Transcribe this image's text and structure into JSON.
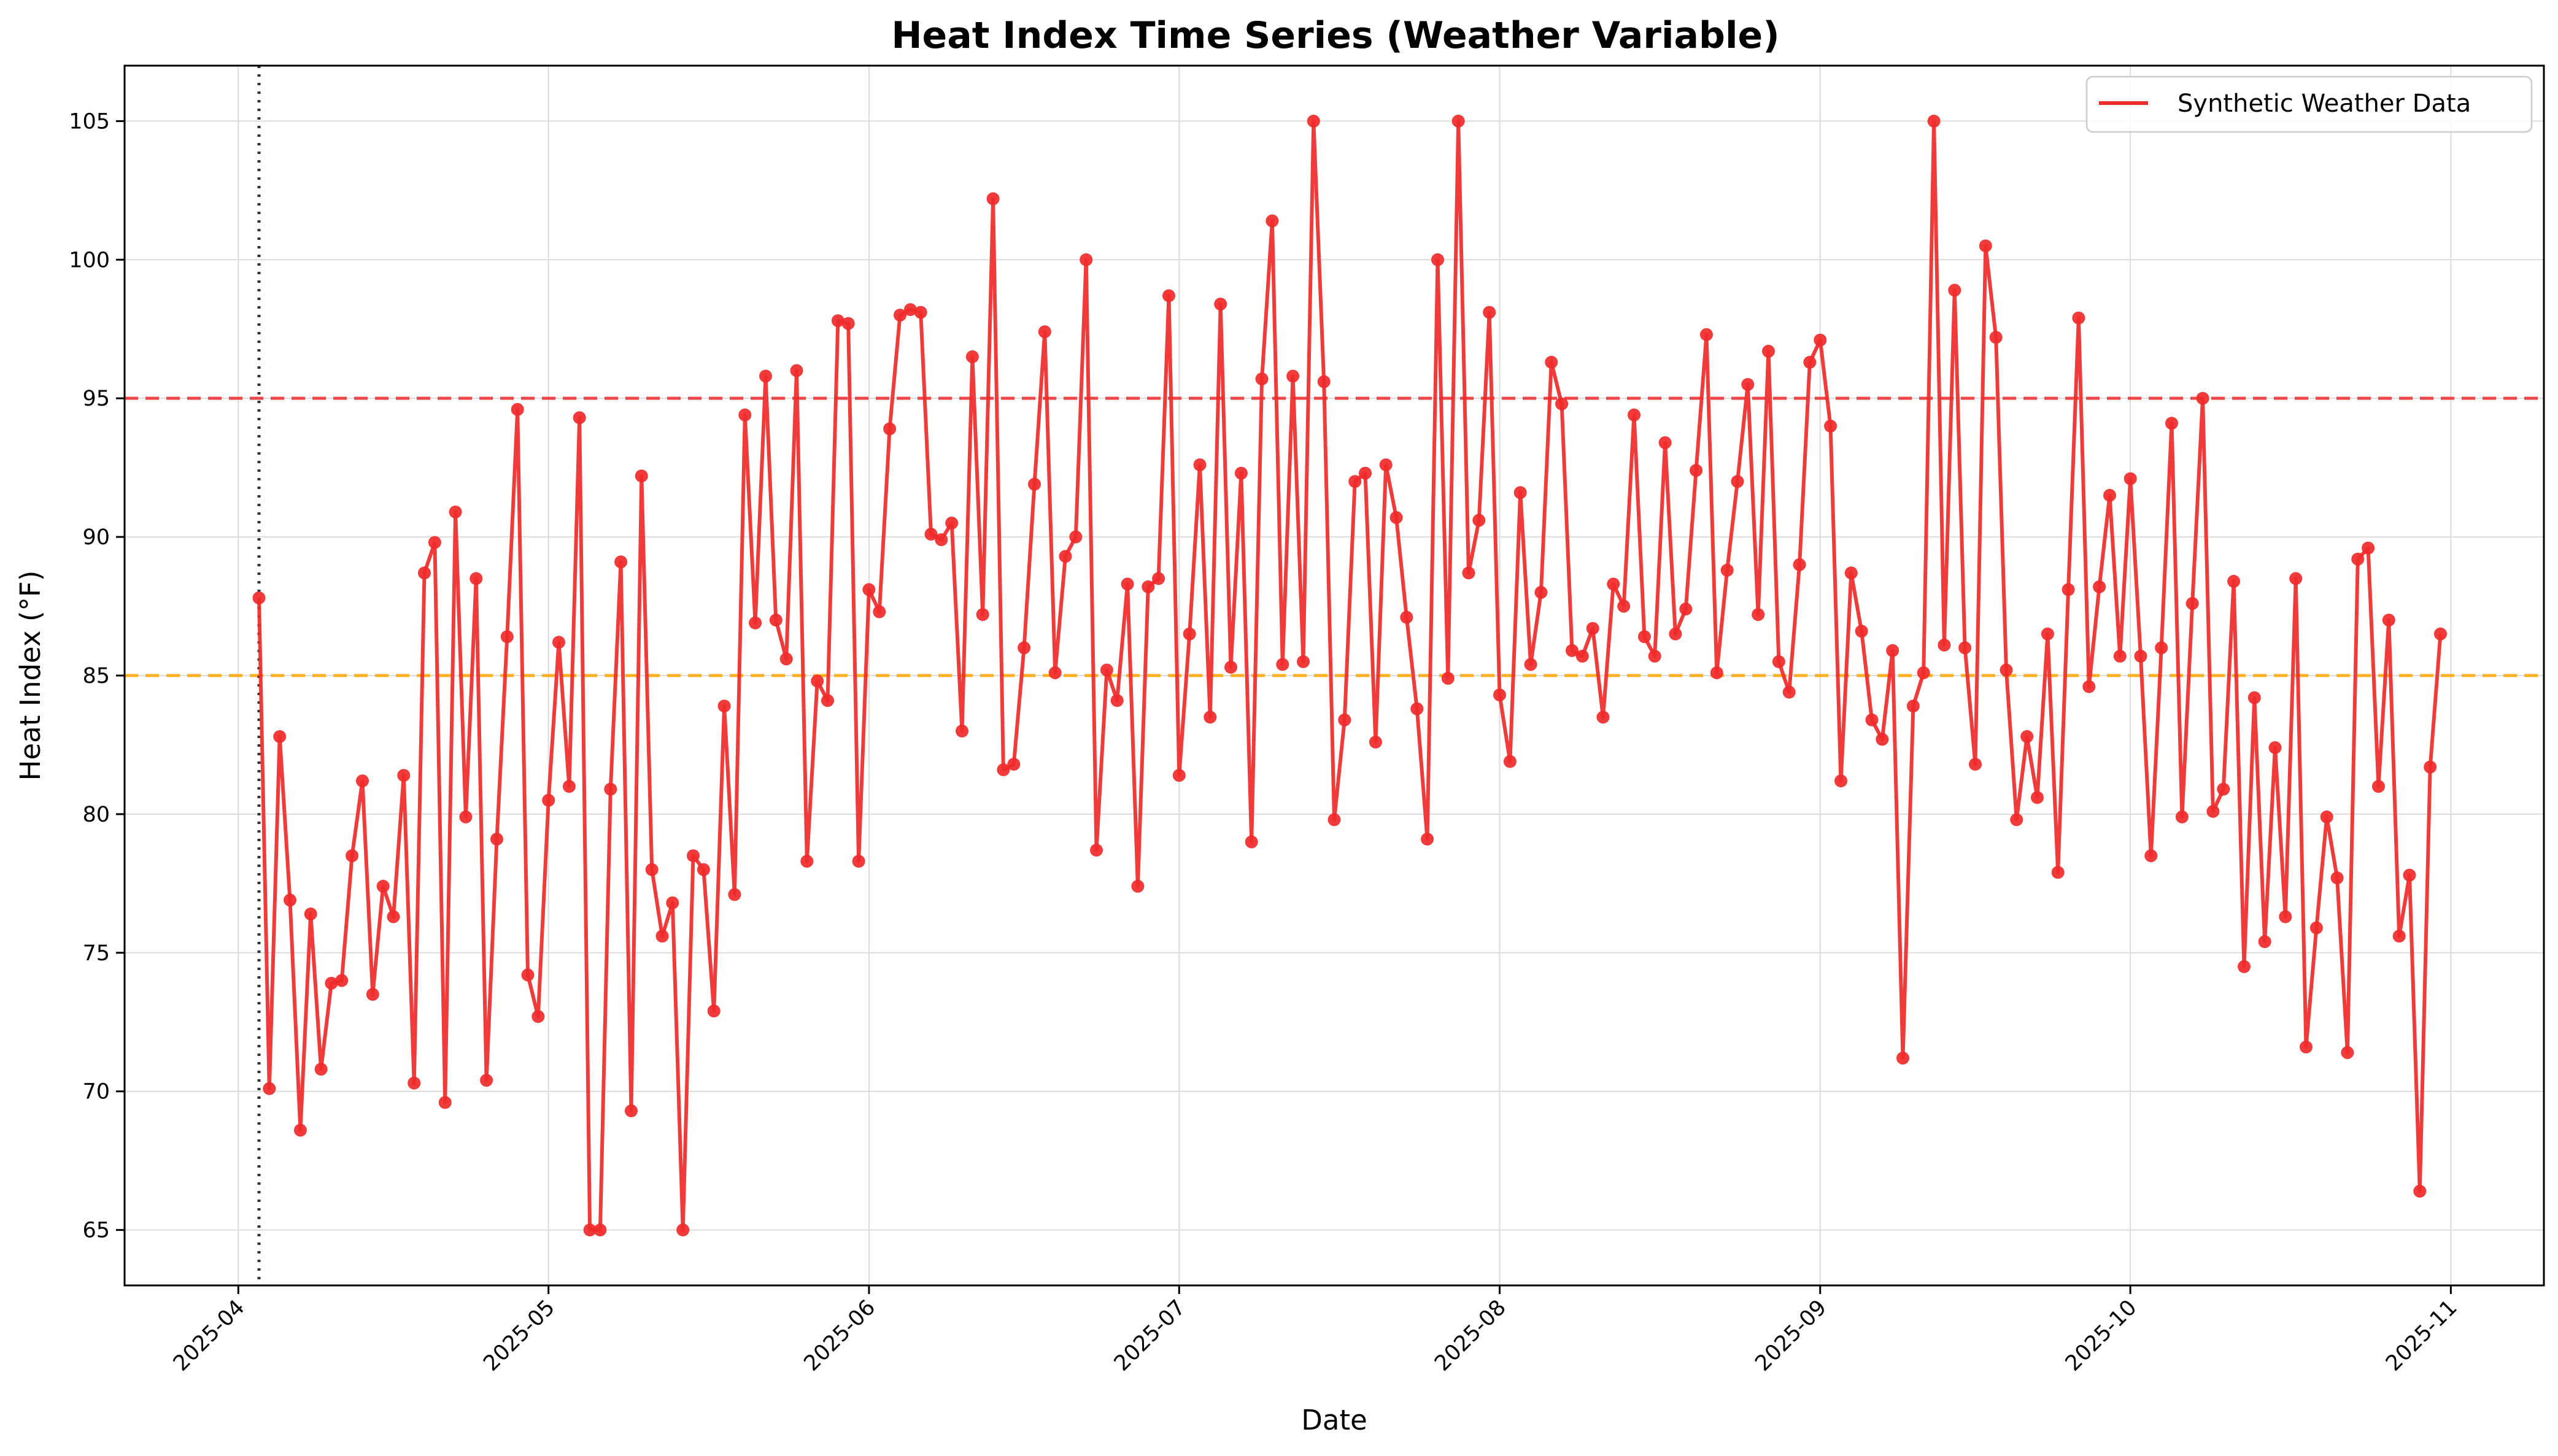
{
  "chart_data": {
    "type": "line",
    "title": "Heat Index Time Series (Weather Variable)",
    "xlabel": "Date",
    "ylabel": "Heat Index (°F)",
    "x_start": "2025-04-03",
    "x_end": "2025-10-31",
    "xlim": [
      "2025-03-21",
      "2025-11-10"
    ],
    "ylim": [
      63,
      107
    ],
    "y_ticks": [
      65,
      70,
      75,
      80,
      85,
      90,
      95,
      100,
      105
    ],
    "x_ticks": [
      "2025-04",
      "2025-05",
      "2025-06",
      "2025-07",
      "2025-08",
      "2025-09",
      "2025-10",
      "2025-11"
    ],
    "grid": true,
    "legend_position": "top-right",
    "series": [
      {
        "name": "Synthetic Weather Data",
        "color": "#f02a2a",
        "values": [
          87.8,
          70.1,
          82.8,
          76.9,
          68.6,
          76.4,
          70.8,
          73.9,
          74.0,
          78.5,
          81.2,
          73.5,
          77.4,
          76.3,
          81.4,
          70.3,
          88.7,
          89.8,
          69.6,
          90.9,
          79.9,
          88.5,
          70.4,
          79.1,
          86.4,
          94.6,
          74.2,
          72.7,
          80.5,
          86.2,
          81.0,
          94.3,
          65.0,
          65.0,
          80.9,
          89.1,
          69.3,
          92.2,
          78.0,
          75.6,
          76.8,
          65.0,
          78.5,
          78.0,
          72.9,
          83.9,
          77.1,
          94.4,
          86.9,
          95.8,
          87.0,
          85.6,
          96.0,
          78.3,
          84.8,
          84.1,
          97.8,
          97.7,
          78.3,
          88.1,
          87.3,
          93.9,
          98.0,
          98.2,
          98.1,
          90.1,
          89.9,
          90.5,
          83.0,
          96.5,
          87.2,
          102.2,
          81.6,
          81.8,
          86.0,
          91.9,
          97.4,
          85.1,
          89.3,
          90.0,
          100.0,
          78.7,
          85.2,
          84.1,
          88.3,
          77.4,
          88.2,
          88.5,
          98.7,
          81.4,
          86.5,
          92.6,
          83.5,
          98.4,
          85.3,
          92.3,
          79.0,
          95.7,
          101.4,
          85.4,
          95.8,
          85.5,
          105.0,
          95.6,
          79.8,
          83.4,
          92.0,
          92.3,
          82.6,
          92.6,
          90.7,
          87.1,
          83.8,
          79.1,
          100.0,
          84.9,
          105.0,
          88.7,
          90.6,
          98.1,
          84.3,
          81.9,
          91.6,
          85.4,
          88.0,
          96.3,
          94.8,
          85.9,
          85.7,
          86.7,
          83.5,
          88.3,
          87.5,
          94.4,
          86.4,
          85.7,
          93.4,
          86.5,
          87.4,
          92.4,
          97.3,
          85.1,
          88.8,
          92.0,
          95.5,
          87.2,
          96.7,
          85.5,
          84.4,
          89.0,
          96.3,
          97.1,
          94.0,
          81.2,
          88.7,
          86.6,
          83.4,
          82.7,
          85.9,
          71.2,
          83.9,
          85.1,
          105.0,
          86.1,
          98.9,
          86.0,
          81.8,
          100.5,
          97.2,
          85.2,
          79.8,
          82.8,
          80.6,
          86.5,
          77.9,
          88.1,
          97.9,
          84.6,
          88.2,
          91.5,
          85.7,
          92.1,
          85.7,
          78.5,
          86.0,
          94.1,
          79.9,
          87.6,
          95.0,
          80.1,
          80.9,
          88.4,
          74.5,
          84.2,
          75.4,
          82.4,
          76.3,
          88.5,
          71.6,
          75.9,
          79.9,
          77.7,
          71.4,
          89.2,
          89.6,
          81.0,
          87.0,
          75.6,
          77.8,
          66.4,
          81.7,
          86.5
        ]
      }
    ],
    "reference_lines": [
      {
        "type": "horizontal",
        "value": 95,
        "color": "#f02a2a",
        "style": "dashed"
      },
      {
        "type": "horizontal",
        "value": 85,
        "color": "#ffa500",
        "style": "dashed"
      },
      {
        "type": "vertical",
        "value": "2025-04-03",
        "color": "#333333",
        "style": "dotted"
      }
    ]
  }
}
